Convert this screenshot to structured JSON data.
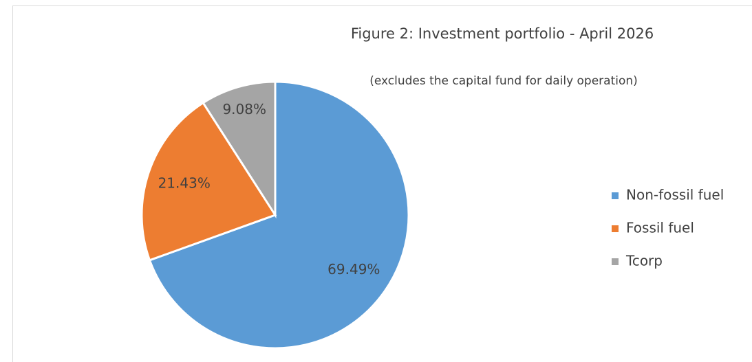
{
  "chart_data": {
    "type": "pie",
    "title": "Figure 2: Investment portfolio -  April 2026",
    "subtitle": "(excludes the capital fund for daily operation)",
    "categories": [
      "Non-fossil fuel",
      "Fossil fuel",
      "Tcorp"
    ],
    "values": [
      69.49,
      21.43,
      9.08
    ],
    "value_labels": [
      "69.49%",
      "21.43%",
      "9.08%"
    ],
    "colors": [
      "#5b9bd5",
      "#ed7d31",
      "#a5a5a5"
    ],
    "legend": "right"
  }
}
